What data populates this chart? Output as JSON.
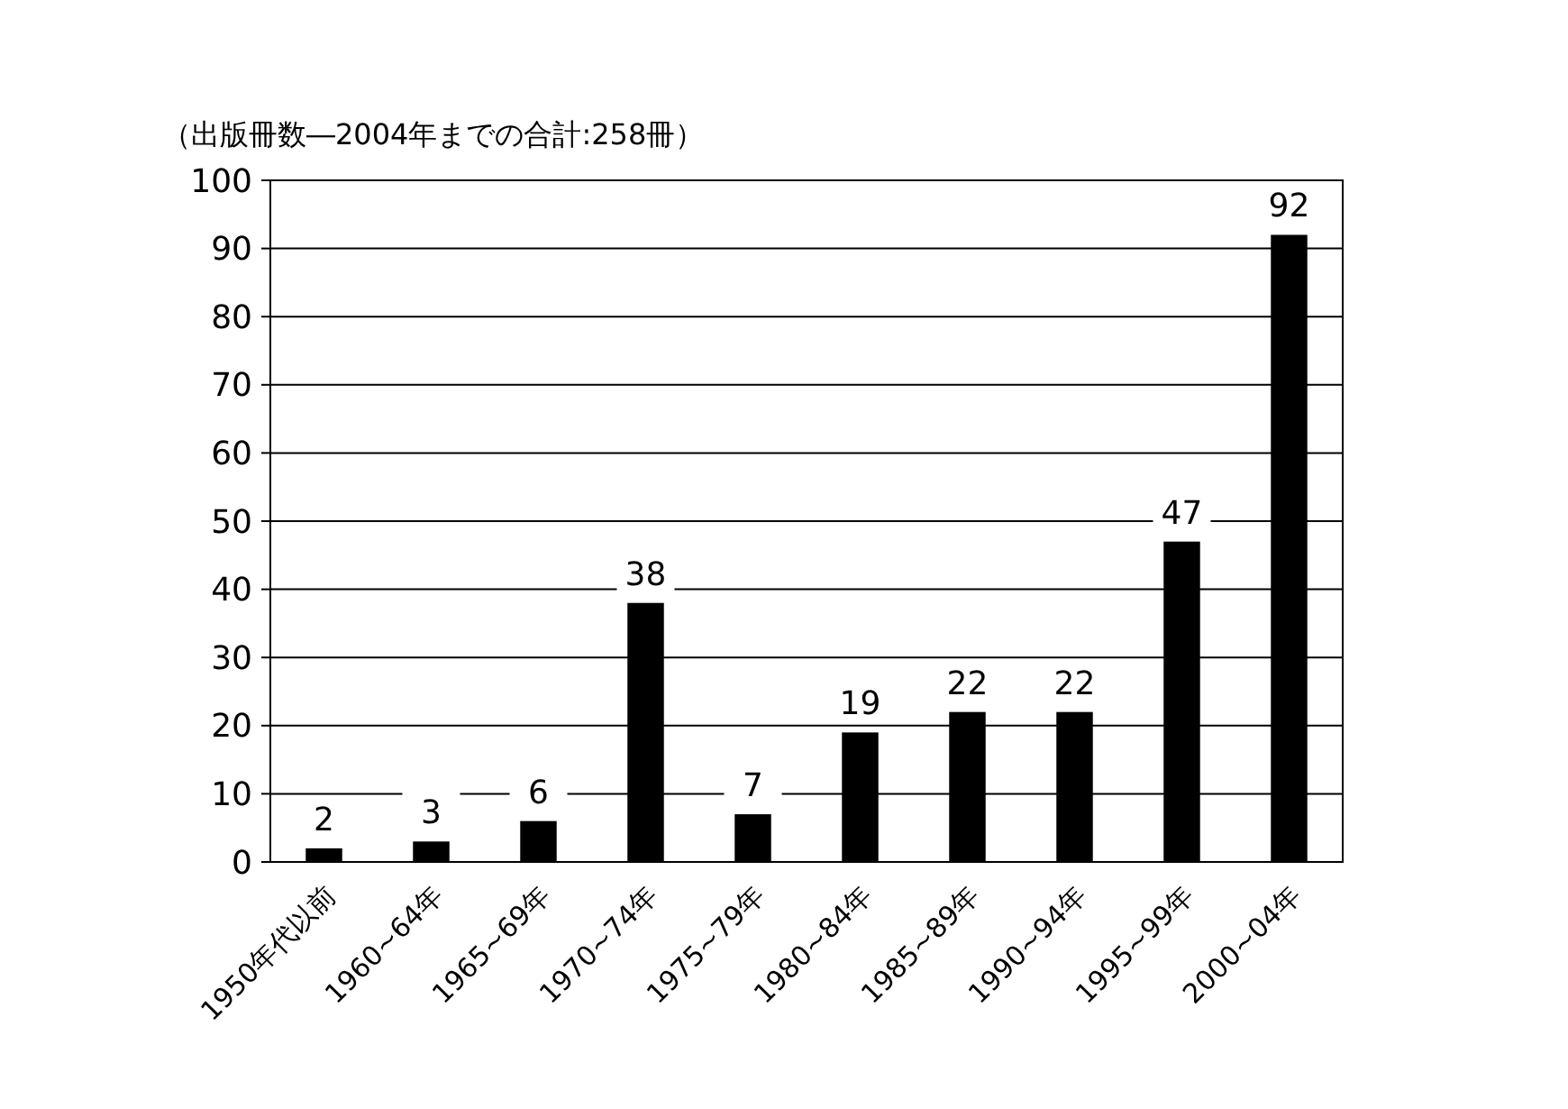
{
  "chart_data": {
    "type": "bar",
    "title": "（出版冊数―2004年までの合計:258冊）",
    "categories": [
      "1950年代以前",
      "1960~64年",
      "1965~69年",
      "1970~74年",
      "1975~79年",
      "1980~84年",
      "1985~89年",
      "1990~94年",
      "1995~99年",
      "2000~04年"
    ],
    "values": [
      2,
      3,
      6,
      38,
      7,
      19,
      22,
      22,
      47,
      92
    ],
    "color": "#000000",
    "ylim": [
      0,
      100
    ],
    "yticks": [
      0,
      10,
      20,
      30,
      40,
      50,
      60,
      70,
      80,
      90,
      100
    ],
    "grid": "y",
    "data_labels": true
  }
}
